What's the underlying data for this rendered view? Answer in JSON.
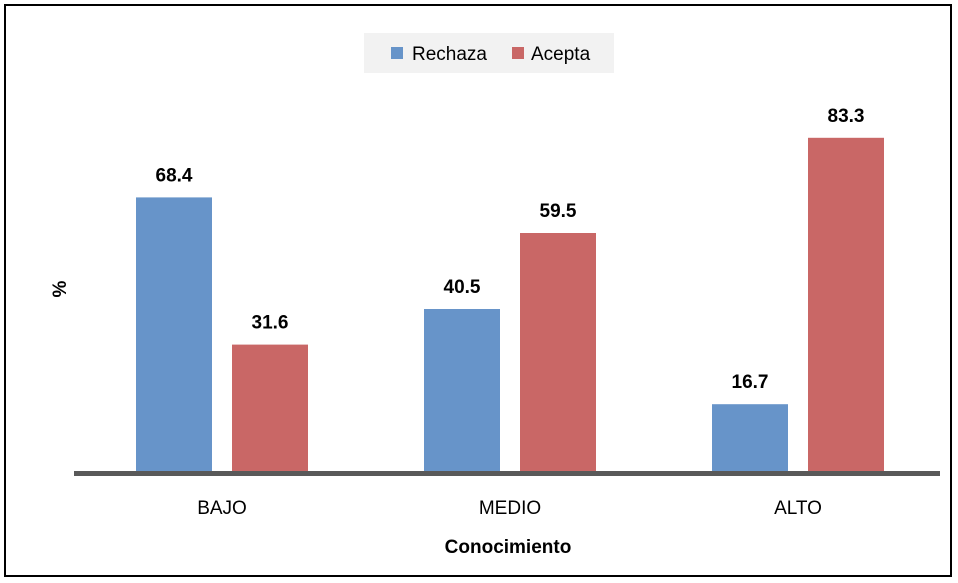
{
  "chart_data": {
    "type": "bar",
    "categories": [
      "BAJO",
      "MEDIO",
      "ALTO"
    ],
    "series": [
      {
        "name": "Rechaza",
        "values": [
          68.4,
          40.5,
          16.7
        ],
        "color": "#6794c9"
      },
      {
        "name": "Acepta",
        "values": [
          31.6,
          59.5,
          83.3
        ],
        "color": "#c96766"
      }
    ],
    "data_labels": [
      [
        "68.4",
        "40.5",
        "16.7"
      ],
      [
        "31.6",
        "59.5",
        "83.3"
      ]
    ],
    "title": "",
    "xlabel": "Conocimiento",
    "ylabel": "%",
    "ylim": [
      0,
      100
    ],
    "grid": false,
    "legend_position": "top-center",
    "axis_color": "#595959"
  }
}
